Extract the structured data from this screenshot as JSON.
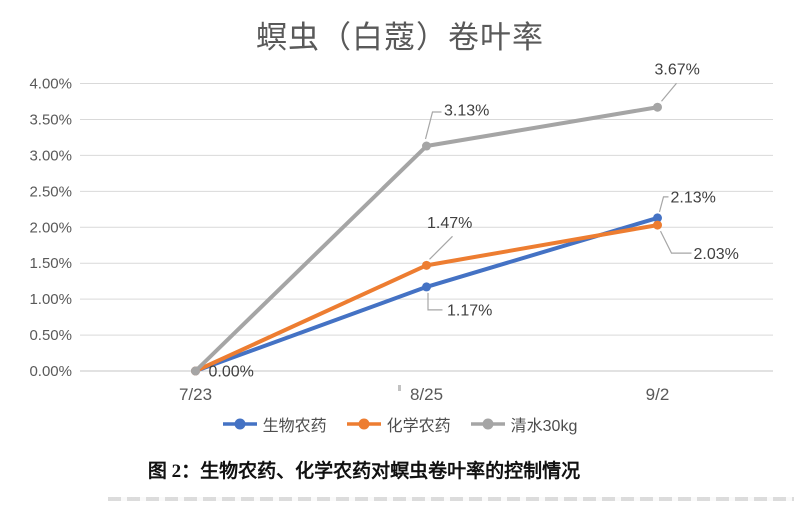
{
  "figure": {
    "title": "螟虫（白蔻）卷叶率",
    "caption": "图 2：生物农药、化学农药对螟虫卷叶率的控制情况"
  },
  "colors": {
    "series_blue": "#4472C4",
    "series_orange": "#ED7D31",
    "series_gray": "#A5A5A5",
    "gridline": "#D9D9D9",
    "zero_axis_line": "#C4C4C4",
    "axis_text": "#595959",
    "data_label_text": "#404040",
    "callout_line": "#A6A6A6",
    "title_text": "#595959"
  },
  "chart_data": {
    "type": "line",
    "title": "螟虫（白蔻）卷叶率",
    "xlabel": "",
    "ylabel": "",
    "categories": [
      "7/23",
      "8/25",
      "9/2"
    ],
    "series": [
      {
        "name": "生物农药",
        "color": "#4472C4",
        "values": [
          0.0,
          1.17,
          2.13
        ]
      },
      {
        "name": "化学农药",
        "color": "#ED7D31",
        "values": [
          0.0,
          1.47,
          2.03
        ]
      },
      {
        "name": "清水30kg",
        "color": "#A5A5A5",
        "values": [
          0.0,
          3.13,
          3.67
        ]
      }
    ],
    "ylim": [
      0,
      4
    ],
    "ytick_step": 0.5,
    "ytick_labels": [
      "0.00%",
      "0.50%",
      "1.00%",
      "1.50%",
      "2.00%",
      "2.50%",
      "3.00%",
      "3.50%",
      "4.00%"
    ],
    "grid": true,
    "legend_position": "bottom",
    "annotations": [
      {
        "text": "0.00%",
        "series": 2,
        "point": 0
      },
      {
        "text": "1.17%",
        "series": 0,
        "point": 1
      },
      {
        "text": "1.47%",
        "series": 1,
        "point": 1
      },
      {
        "text": "3.13%",
        "series": 2,
        "point": 1
      },
      {
        "text": "2.13%",
        "series": 0,
        "point": 2
      },
      {
        "text": "2.03%",
        "series": 1,
        "point": 2
      },
      {
        "text": "3.67%",
        "series": 2,
        "point": 2
      }
    ]
  }
}
